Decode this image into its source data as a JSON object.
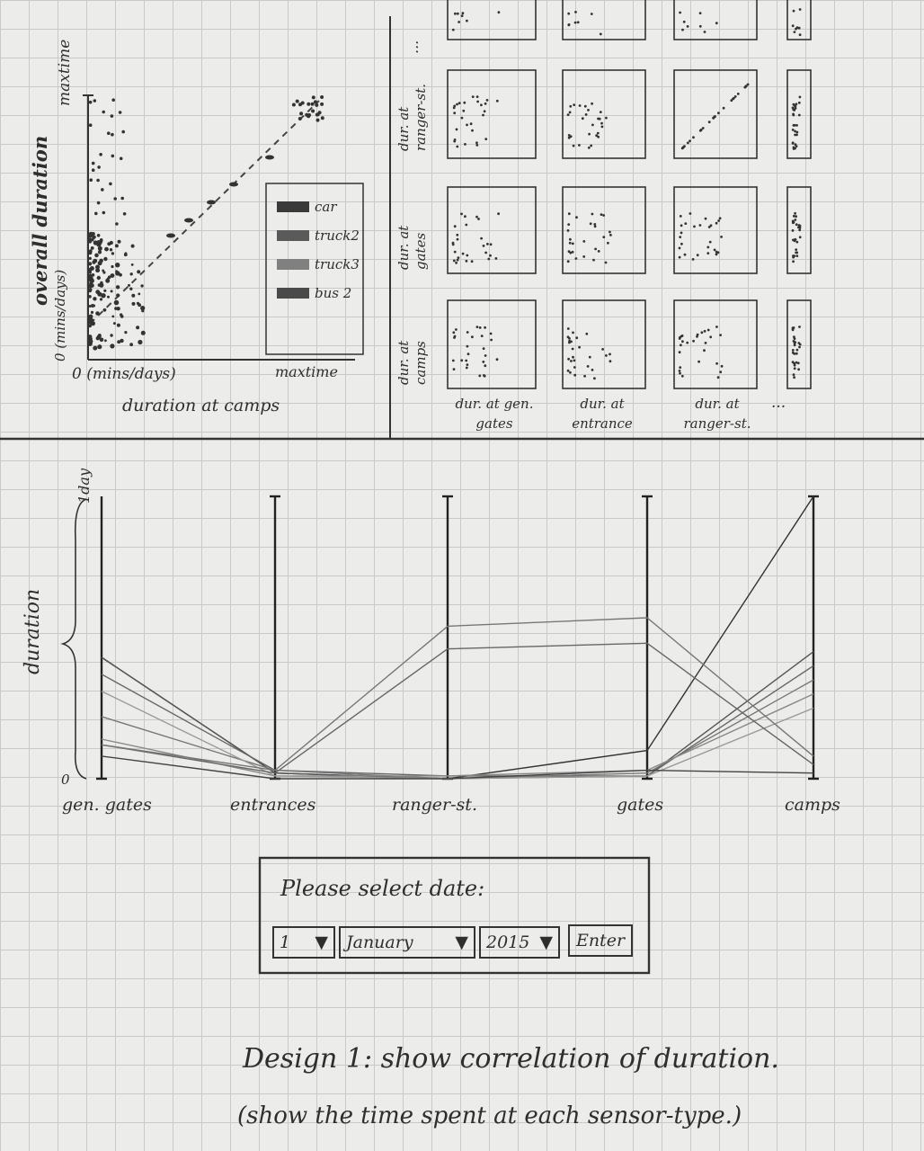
{
  "scatter": {
    "ylabel": "overall duration",
    "ymax": "maxtime",
    "yunit": "0 (mins/days)",
    "xorigin": "0 (mins/days)",
    "xmax": "maxtime",
    "xlabel": "duration at camps",
    "legend": [
      "car",
      "truck2",
      "truck3",
      "bus 2"
    ]
  },
  "matrix": {
    "row_labels": [
      "dur. at ranger-st.",
      "dur. at gates",
      "dur. at camps"
    ],
    "col_labels": [
      "dur. at gen. gates",
      "dur. at entrance",
      "dur. at ranger-st."
    ],
    "ellipsis": "..."
  },
  "parallel": {
    "ylabel": "duration",
    "ymax": "1day",
    "ymin": "0",
    "axes": [
      "gen. gates",
      "entrances",
      "ranger-st.",
      "gates",
      "camps"
    ]
  },
  "chart_data": {
    "type": "line",
    "categories": [
      "gen. gates",
      "entrances",
      "ranger-st.",
      "gates",
      "camps"
    ],
    "ylabel": "duration",
    "ylim": [
      0,
      1
    ],
    "series": [
      {
        "values": [
          0.43,
          0.02,
          0.0,
          0.1,
          1.0
        ]
      },
      {
        "values": [
          0.43,
          0.02,
          0.0,
          0.01,
          0.45
        ]
      },
      {
        "values": [
          0.37,
          0.03,
          0.01,
          0.01,
          0.4
        ]
      },
      {
        "values": [
          0.22,
          0.03,
          0.0,
          0.02,
          0.35
        ]
      },
      {
        "values": [
          0.14,
          0.01,
          0.01,
          0.03,
          0.3
        ]
      },
      {
        "values": [
          0.31,
          0.01,
          0.0,
          0.01,
          0.25
        ]
      },
      {
        "values": [
          0.12,
          0.02,
          0.46,
          0.48,
          0.05
        ]
      },
      {
        "values": [
          0.12,
          0.03,
          0.54,
          0.57,
          0.08
        ]
      },
      {
        "values": [
          0.08,
          0.0,
          0.0,
          0.03,
          0.02
        ]
      }
    ]
  },
  "date_form": {
    "title": "Please select date:",
    "day": "1",
    "month": "January",
    "year": "2015",
    "enter": "Enter"
  },
  "caption": {
    "line1": "Design 1: show correlation of duration.",
    "line2": "(show the time spent at each sensor-type.)"
  }
}
